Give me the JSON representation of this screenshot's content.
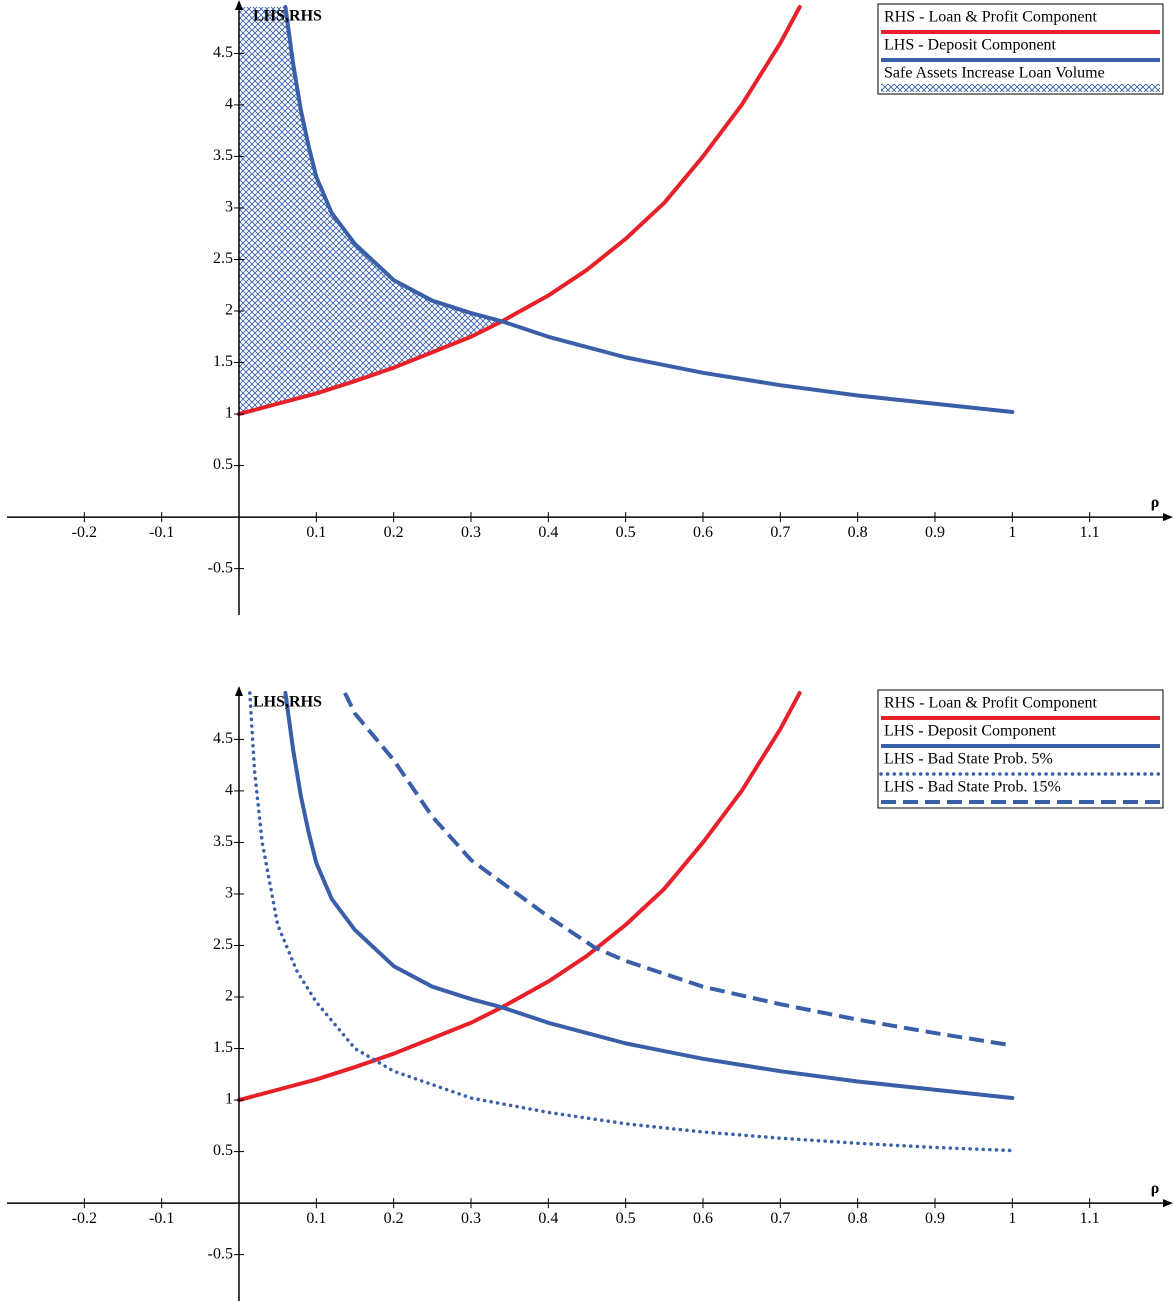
{
  "chart_data": [
    {
      "type": "line",
      "xlabel": "ρ",
      "ylabel": "LHS,RHS",
      "xlim": [
        -0.3,
        1.2
      ],
      "ylim": [
        -0.95,
        4.95
      ],
      "xticks": [
        -0.2,
        -0.1,
        0.1,
        0.2,
        0.3,
        0.4,
        0.5,
        0.6,
        0.7,
        0.8,
        0.9,
        1,
        1.1
      ],
      "yticks": [
        -0.5,
        0.5,
        1,
        1.5,
        2,
        2.5,
        3,
        3.5,
        4,
        4.5
      ],
      "legend": "upper right",
      "series": [
        {
          "name": "RHS - Loan & Profit Component",
          "color": "#e8202a",
          "style": "solid",
          "x": [
            0,
            0.05,
            0.1,
            0.15,
            0.2,
            0.25,
            0.3,
            0.34,
            0.4,
            0.45,
            0.5,
            0.55,
            0.6,
            0.65,
            0.7,
            0.725
          ],
          "values": [
            1,
            1.1,
            1.2,
            1.32,
            1.45,
            1.6,
            1.75,
            1.9,
            2.15,
            2.4,
            2.7,
            3.05,
            3.5,
            4.0,
            4.6,
            4.95
          ]
        },
        {
          "name": "LHS - Deposit Component",
          "color": "#3a5fa8",
          "style": "solid",
          "x": [
            0.06,
            0.07,
            0.08,
            0.09,
            0.1,
            0.12,
            0.15,
            0.2,
            0.25,
            0.3,
            0.34,
            0.4,
            0.5,
            0.6,
            0.7,
            0.8,
            0.9,
            1
          ],
          "values": [
            4.95,
            4.4,
            3.95,
            3.6,
            3.3,
            2.95,
            2.65,
            2.3,
            2.1,
            1.98,
            1.9,
            1.75,
            1.55,
            1.4,
            1.28,
            1.18,
            1.1,
            1.02
          ]
        },
        {
          "name": "Safe Assets Increase Loan Volume",
          "color": "#3a5fa8",
          "style": "crosshatch",
          "x": [
            0,
            0.06,
            0.07,
            0.08,
            0.09,
            0.1,
            0.12,
            0.15,
            0.2,
            0.25,
            0.3,
            0.34
          ],
          "values": [
            4.95,
            4.95,
            4.4,
            3.95,
            3.6,
            3.3,
            2.95,
            2.65,
            2.3,
            2.1,
            1.98,
            1.9
          ],
          "lower": [
            1,
            1.12,
            1.14,
            1.16,
            1.18,
            1.2,
            1.24,
            1.32,
            1.45,
            1.6,
            1.75,
            1.9
          ]
        }
      ]
    },
    {
      "type": "line",
      "xlabel": "ρ",
      "ylabel": "LHS,RHS",
      "xlim": [
        -0.3,
        1.2
      ],
      "ylim": [
        -0.95,
        4.95
      ],
      "xticks": [
        -0.2,
        -0.1,
        0.1,
        0.2,
        0.3,
        0.4,
        0.5,
        0.6,
        0.7,
        0.8,
        0.9,
        1,
        1.1
      ],
      "yticks": [
        -0.5,
        0.5,
        1,
        1.5,
        2,
        2.5,
        3,
        3.5,
        4,
        4.5
      ],
      "legend": "upper right",
      "series": [
        {
          "name": "RHS - Loan & Profit Component",
          "color": "#e8202a",
          "style": "solid",
          "x": [
            0,
            0.05,
            0.1,
            0.15,
            0.2,
            0.25,
            0.3,
            0.34,
            0.4,
            0.45,
            0.5,
            0.55,
            0.6,
            0.65,
            0.7,
            0.725
          ],
          "values": [
            1,
            1.1,
            1.2,
            1.32,
            1.45,
            1.6,
            1.75,
            1.9,
            2.15,
            2.4,
            2.7,
            3.05,
            3.5,
            4.0,
            4.6,
            4.95
          ]
        },
        {
          "name": "LHS - Deposit Component",
          "color": "#3a5fa8",
          "style": "solid",
          "x": [
            0.06,
            0.07,
            0.08,
            0.09,
            0.1,
            0.12,
            0.15,
            0.2,
            0.25,
            0.3,
            0.34,
            0.4,
            0.5,
            0.6,
            0.7,
            0.8,
            0.9,
            1
          ],
          "values": [
            4.95,
            4.4,
            3.95,
            3.6,
            3.3,
            2.95,
            2.65,
            2.3,
            2.1,
            1.98,
            1.9,
            1.75,
            1.55,
            1.4,
            1.28,
            1.18,
            1.1,
            1.02
          ]
        },
        {
          "name": "LHS - Bad State Prob. 5%",
          "color": "#3a5fa8",
          "style": "dotted",
          "x": [
            0.014,
            0.02,
            0.03,
            0.05,
            0.075,
            0.1,
            0.15,
            0.2,
            0.3,
            0.4,
            0.5,
            0.6,
            0.7,
            0.8,
            0.9,
            1
          ],
          "values": [
            4.95,
            4.2,
            3.5,
            2.7,
            2.25,
            1.95,
            1.5,
            1.28,
            1.02,
            0.88,
            0.77,
            0.69,
            0.63,
            0.58,
            0.54,
            0.51
          ]
        },
        {
          "name": "LHS - Bad State Prob. 15%",
          "color": "#3a5fa8",
          "style": "dashed",
          "x": [
            0.137,
            0.15,
            0.2,
            0.25,
            0.3,
            0.4,
            0.46,
            0.5,
            0.6,
            0.7,
            0.8,
            0.9,
            1
          ],
          "values": [
            4.95,
            4.75,
            4.3,
            3.75,
            3.33,
            2.78,
            2.48,
            2.35,
            2.1,
            1.93,
            1.78,
            1.65,
            1.53
          ]
        }
      ]
    }
  ]
}
